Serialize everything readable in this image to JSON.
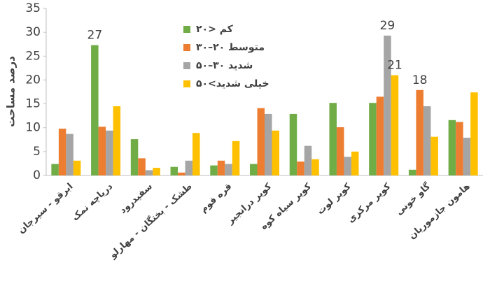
{
  "chart_data": {
    "type": "bar",
    "y_label": "درصد مساحت",
    "categories": [
      "ابرقو - سیرجان",
      "دریاچه نمک",
      "سفیدرود",
      "طشک - بختگان - مهارلو",
      "قره قوم",
      "کویر درانجیر",
      "کویر سیاه کوه",
      "کویر لوت",
      "کویر مرکزی",
      "گاو خونی",
      "هامون جازموریان"
    ],
    "series": [
      {
        "name": "کم <۲۰",
        "color": "#70ad47",
        "values": [
          2.4,
          27.3,
          7.6,
          1.8,
          2.1,
          2.4,
          12.9,
          15.2,
          15.2,
          1.2,
          11.6
        ],
        "value_labels": [
          null,
          "27",
          null,
          null,
          null,
          null,
          null,
          null,
          null,
          null,
          null
        ]
      },
      {
        "name": "متوسط ۲۰–۳۰",
        "color": "#ed7d31",
        "values": [
          9.8,
          10.2,
          3.6,
          0.6,
          3.1,
          14.1,
          2.9,
          10.1,
          16.5,
          17.9,
          11.2
        ],
        "value_labels": [
          null,
          null,
          null,
          null,
          null,
          null,
          null,
          null,
          null,
          "18",
          null
        ]
      },
      {
        "name": "شدید ۳۰–۵۰",
        "color": "#a5a5a5",
        "values": [
          8.7,
          9.4,
          1.1,
          3.1,
          2.4,
          12.9,
          6.2,
          3.9,
          29.3,
          14.5,
          7.9
        ],
        "value_labels": [
          null,
          null,
          null,
          null,
          null,
          null,
          null,
          null,
          "29",
          null,
          null
        ]
      },
      {
        "name": "خیلی شدید>۵۰",
        "color": "#ffc000",
        "values": [
          3.1,
          14.5,
          1.6,
          8.9,
          7.2,
          9.4,
          3.4,
          5.0,
          21.0,
          8.1,
          17.4
        ],
        "value_labels": [
          null,
          null,
          null,
          null,
          null,
          null,
          null,
          null,
          "21",
          null,
          null
        ]
      }
    ],
    "ylim": [
      0,
      35
    ],
    "yticks": [
      0,
      5,
      10,
      15,
      20,
      25,
      30,
      35
    ],
    "grid": false
  }
}
